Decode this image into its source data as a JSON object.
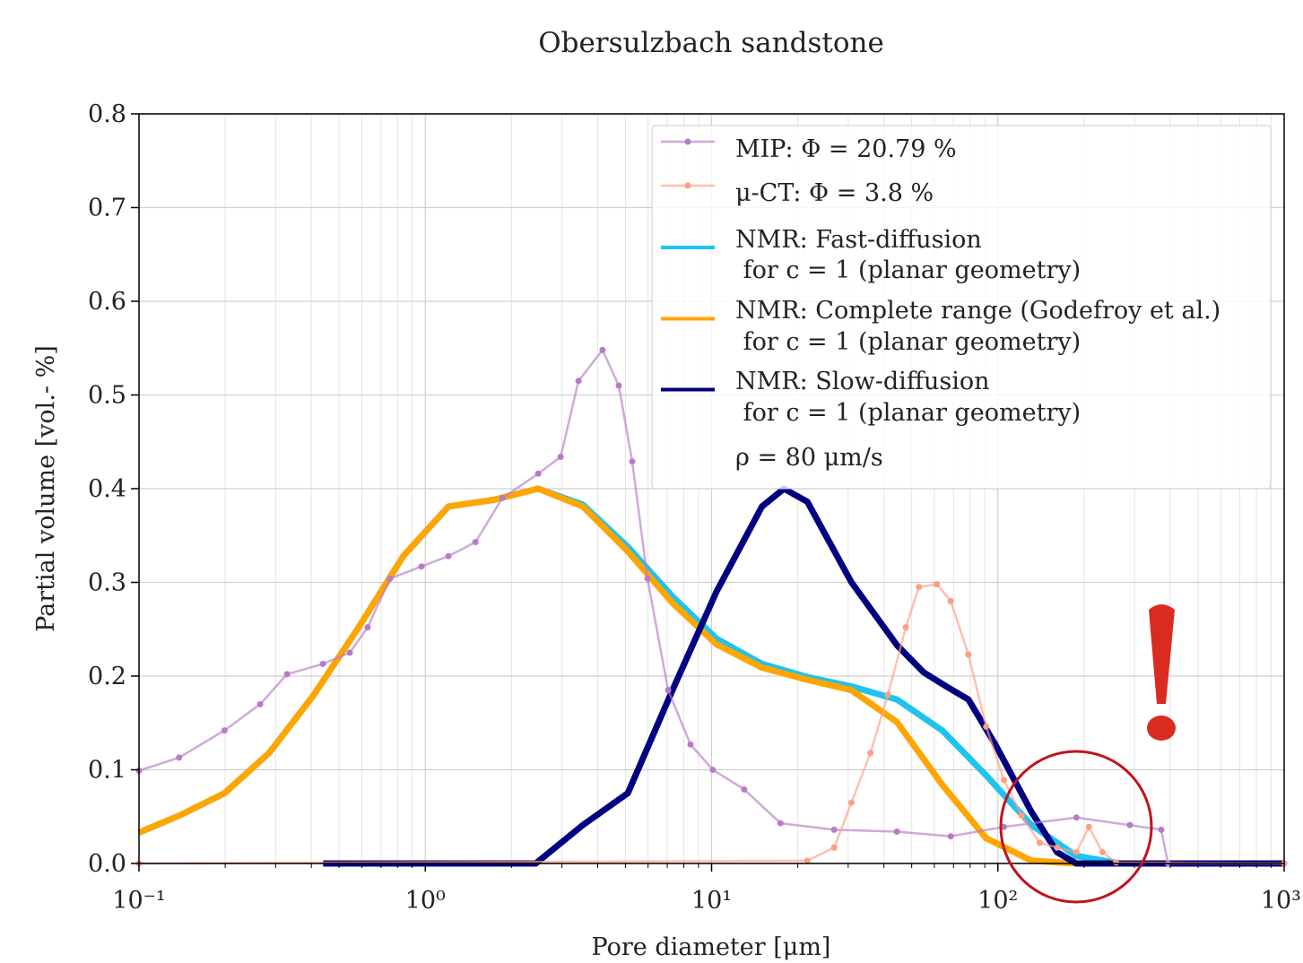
{
  "chart_data": {
    "type": "line",
    "title": "Obersulzbach sandstone",
    "x_label": "Pore diameter [μm]",
    "y_label": "Partial volume [vol.- %]",
    "xscale": "log",
    "xlim": [
      0.1,
      1000
    ],
    "xticks": [
      {
        "value": 0.1,
        "label": "10⁻¹"
      },
      {
        "value": 1,
        "label": "10⁰"
      },
      {
        "value": 10,
        "label": "10¹"
      },
      {
        "value": 100,
        "label": "10²"
      },
      {
        "value": 1000,
        "label": "10³"
      }
    ],
    "ylim": [
      0,
      0.8
    ],
    "yticks": [
      {
        "value": 0,
        "label": "0.0"
      },
      0.1,
      0.2,
      0.3,
      0.4,
      0.5,
      0.6,
      0.7,
      0.8
    ],
    "grid": true,
    "legend": "upper right",
    "annotation": "ρ = 80 μm/s",
    "series": [
      {
        "name": "MIP: Φ = 20.79 %",
        "color": "#b77bc7",
        "markers": true,
        "x": [
          0.1,
          0.138,
          0.199,
          0.265,
          0.329,
          0.439,
          0.545,
          0.629,
          0.753,
          0.97,
          1.205,
          1.497,
          1.857,
          2.48,
          2.97,
          3.43,
          4.16,
          4.74,
          5.28,
          5.97,
          7.05,
          8.44,
          10.1,
          13.0,
          17.4,
          26.8,
          44.4,
          68.4,
          105,
          188,
          289,
          372,
          393,
          1000
        ],
        "values": [
          0.099,
          0.113,
          0.142,
          0.17,
          0.202,
          0.213,
          0.225,
          0.252,
          0.304,
          0.317,
          0.328,
          0.343,
          0.39,
          0.416,
          0.434,
          0.515,
          0.548,
          0.51,
          0.429,
          0.304,
          0.185,
          0.127,
          0.1,
          0.079,
          0.043,
          0.036,
          0.034,
          0.029,
          0.039,
          0.049,
          0.041,
          0.036,
          0,
          0
        ]
      },
      {
        "name": "μ-CT: Φ = 3.8 %",
        "color": "#ff9e82",
        "markers": true,
        "x": [
          0.1,
          21.6,
          26.8,
          30.8,
          35.9,
          41.3,
          47.7,
          53.0,
          61.2,
          68.4,
          78.9,
          91.0,
          105,
          121,
          140,
          161,
          188,
          208,
          232,
          259,
          1000
        ],
        "values": [
          0,
          0.003,
          0.017,
          0.065,
          0.118,
          0.18,
          0.252,
          0.295,
          0.298,
          0.28,
          0.223,
          0.146,
          0.089,
          0.051,
          0.022,
          0.017,
          0.012,
          0.039,
          0.012,
          0.001,
          0
        ]
      },
      {
        "name": "NMR: Fast-diffusion\n for c = 1 (planar geometry)",
        "color": "#1ec3f0",
        "markers": false,
        "x": [
          0.1,
          0.138,
          0.199,
          0.285,
          0.408,
          0.585,
          0.838,
          1.205,
          1.73,
          2.48,
          3.55,
          5.1,
          7.3,
          10.4,
          15.0,
          21.6,
          30.8,
          44.4,
          63.9,
          91.0,
          131,
          188,
          267,
          1000
        ],
        "values": [
          0.033,
          0.051,
          0.075,
          0.118,
          0.18,
          0.252,
          0.328,
          0.381,
          0.388,
          0.4,
          0.383,
          0.338,
          0.285,
          0.24,
          0.213,
          0.199,
          0.189,
          0.175,
          0.142,
          0.094,
          0.041,
          0.008,
          0,
          0
        ]
      },
      {
        "name": "NMR: Complete range (Godefroy et al.)\n for c = 1 (planar geometry)",
        "color": "#ffa500",
        "markers": false,
        "x": [
          0.1,
          0.138,
          0.199,
          0.285,
          0.408,
          0.585,
          0.838,
          1.205,
          1.73,
          2.48,
          3.55,
          5.1,
          7.3,
          10.4,
          15.0,
          21.6,
          30.8,
          44.4,
          63.9,
          91.0,
          131,
          188,
          1000
        ],
        "values": [
          0.033,
          0.051,
          0.075,
          0.118,
          0.18,
          0.252,
          0.328,
          0.381,
          0.388,
          0.4,
          0.381,
          0.333,
          0.278,
          0.234,
          0.209,
          0.196,
          0.185,
          0.151,
          0.084,
          0.027,
          0.003,
          0,
          0
        ]
      },
      {
        "name": "NMR: Slow-diffusion\n for c = 1 (planar geometry)",
        "color": "#000080",
        "markers": false,
        "x": [
          0.44,
          2.43,
          3.55,
          5.1,
          7.3,
          10.4,
          15.0,
          17.9,
          21.6,
          30.8,
          44.4,
          55.0,
          66.0,
          78.9,
          98.0,
          131,
          161,
          188,
          1000
        ],
        "values": [
          0,
          0,
          0.041,
          0.075,
          0.185,
          0.29,
          0.381,
          0.4,
          0.386,
          0.3,
          0.233,
          0.204,
          0.189,
          0.175,
          0.127,
          0.055,
          0.012,
          0,
          0
        ]
      }
    ]
  }
}
